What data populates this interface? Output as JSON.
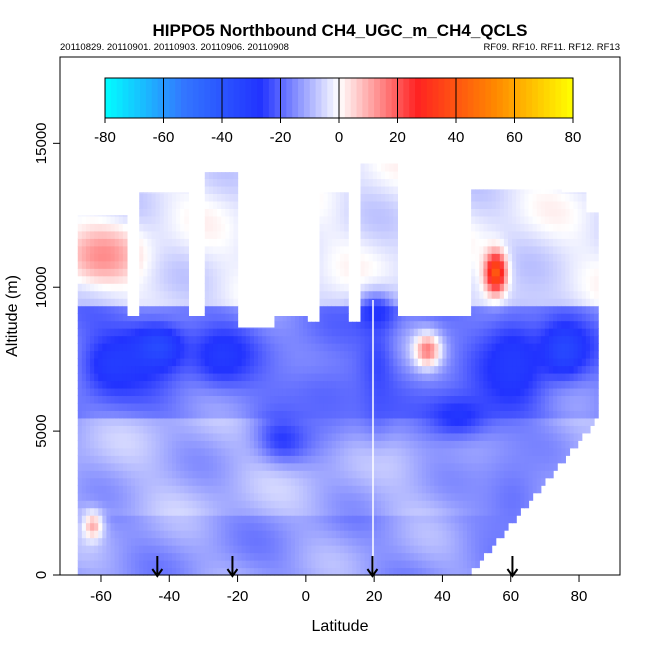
{
  "chart_data": {
    "type": "heatmap",
    "title": "HIPPO5 Northbound CH4_UGC_m_CH4_QCLS",
    "subtitle_left": "20110829. 20110901. 20110903. 20110906. 20110908",
    "subtitle_right": "RF09. RF10. RF11. RF12. RF13",
    "xlabel": "Latitude",
    "ylabel": "Altitude (m)",
    "xlim": [
      -72,
      92
    ],
    "ylim": [
      0,
      18000
    ],
    "x_ticks": [
      -60,
      -40,
      -20,
      0,
      20,
      40,
      60,
      80
    ],
    "y_ticks": [
      0,
      5000,
      10000,
      15000
    ],
    "colorbar": {
      "ticks": [
        -80,
        -60,
        -40,
        -20,
        0,
        20,
        40,
        60,
        80
      ],
      "range": [
        -80,
        80
      ],
      "colors": [
        "#00ffff",
        "#3377ff",
        "#2233ff",
        "#ffffff",
        "#ff2222",
        "#ff8800",
        "#ffff00"
      ]
    },
    "flight_markers_latitude": [
      -43.5,
      -21.5,
      19.5,
      60.5
    ],
    "region_hint": "difference field: mostly negative (blue) below ~9000 m, near zero aloft; positive patches near 55N at 10500 m and -65 at 11000 m",
    "features": [
      {
        "lat": -57,
        "alt": 7200,
        "value": -30,
        "rx": 10,
        "ry": 1200
      },
      {
        "lat": -44,
        "alt": 7800,
        "value": -36,
        "rx": 9,
        "ry": 900
      },
      {
        "lat": -25,
        "alt": 7500,
        "value": -30,
        "rx": 9,
        "ry": 1000
      },
      {
        "lat": -7,
        "alt": 4700,
        "value": -28,
        "rx": 7,
        "ry": 800
      },
      {
        "lat": 20,
        "alt": 9000,
        "value": -28,
        "rx": 6,
        "ry": 700
      },
      {
        "lat": 20,
        "alt": 6800,
        "value": -26,
        "rx": 5,
        "ry": 1800
      },
      {
        "lat": 44,
        "alt": 5400,
        "value": -28,
        "rx": 12,
        "ry": 900
      },
      {
        "lat": 60,
        "alt": 7200,
        "value": -30,
        "rx": 10,
        "ry": 1800
      },
      {
        "lat": 75,
        "alt": 7700,
        "value": -35,
        "rx": 7,
        "ry": 1000
      },
      {
        "lat": 60,
        "alt": 2500,
        "value": -18,
        "rx": 12,
        "ry": 2000
      },
      {
        "lat": 5,
        "alt": 6000,
        "value": -20,
        "rx": 18,
        "ry": 1500
      },
      {
        "lat": 55,
        "alt": 10400,
        "value": 42,
        "rx": 3,
        "ry": 700
      },
      {
        "lat": -60,
        "alt": 11000,
        "value": 14,
        "rx": 10,
        "ry": 900
      },
      {
        "lat": 35,
        "alt": 7700,
        "value": 16,
        "rx": 4,
        "ry": 600
      },
      {
        "lat": -63,
        "alt": 1600,
        "value": 10,
        "rx": 3,
        "ry": 500
      }
    ]
  }
}
